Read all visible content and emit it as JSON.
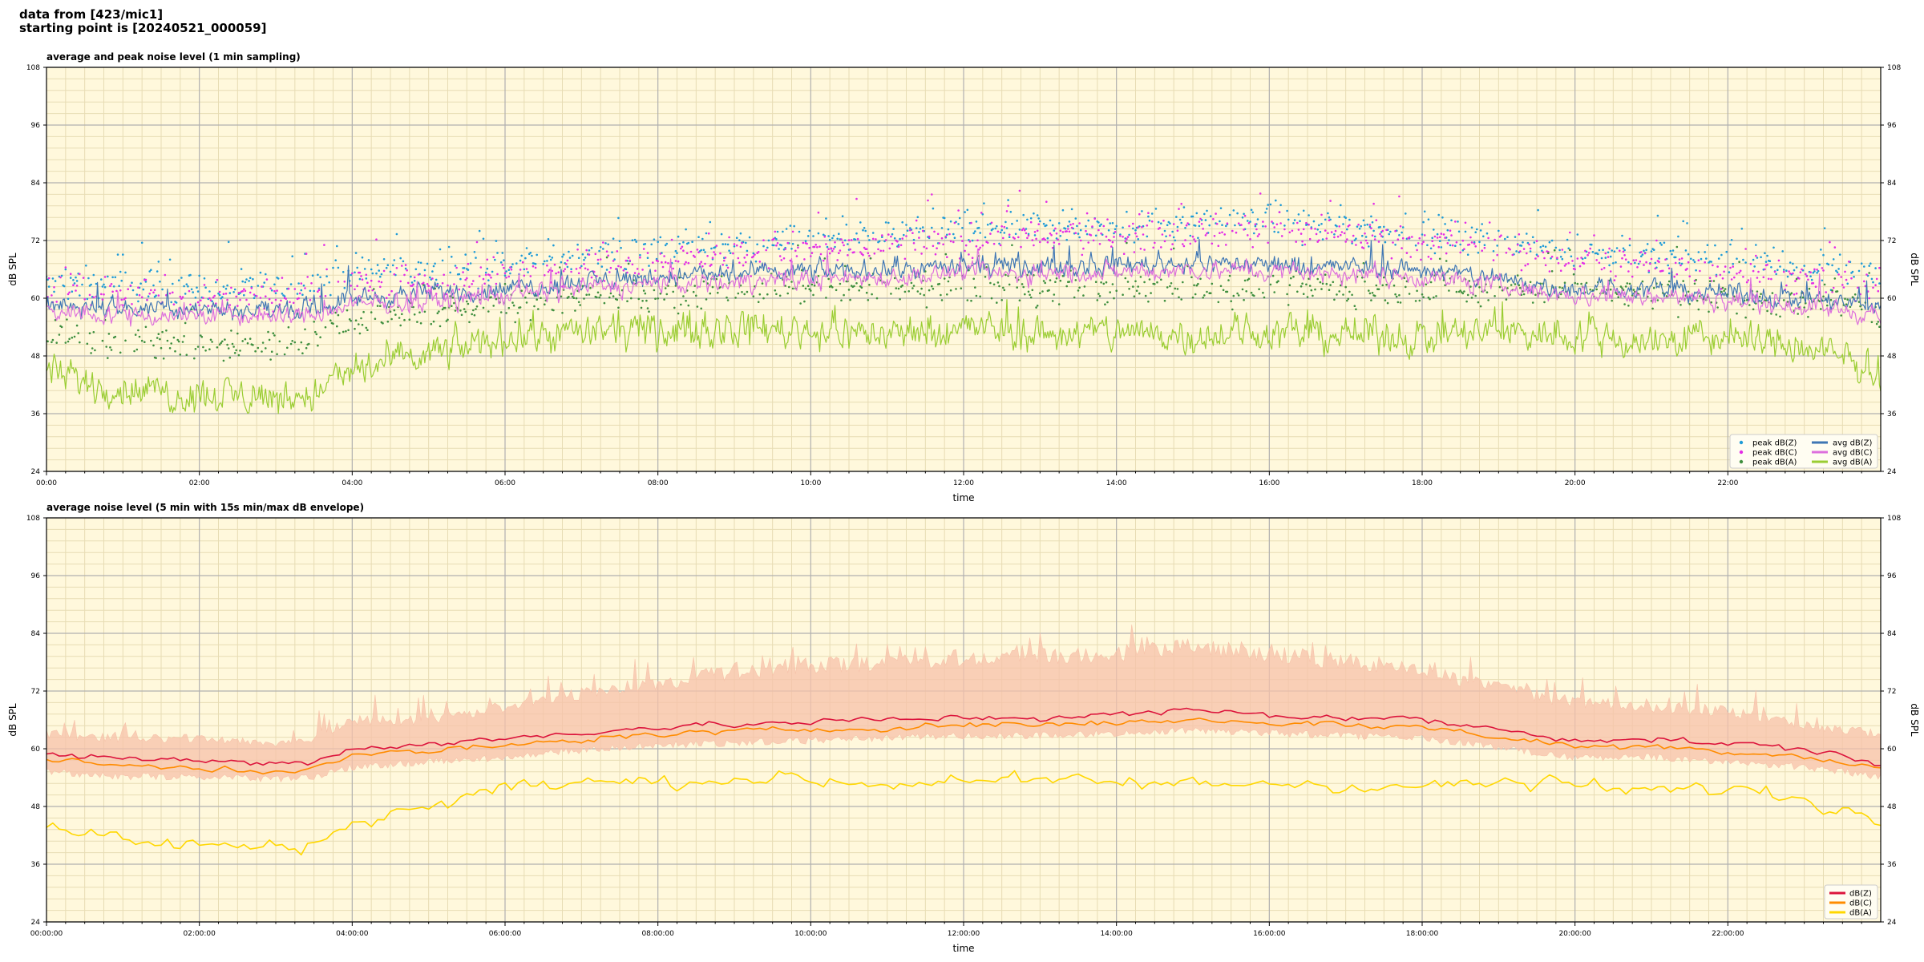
{
  "header": {
    "line1": "data from [423/mic1]",
    "line2": "starting point is [20240521_000059]"
  },
  "colors": {
    "background": "#fff8dc",
    "grid_major": "#b0b0b0",
    "grid_minor": "#e7dcb4",
    "peak_z": "#1f9bd7",
    "peak_c": "#e32de6",
    "peak_a": "#3f8f3f",
    "avg_z": "#3f76b4",
    "avg_c": "#dd6fdd",
    "avg_a": "#9acd32",
    "db_z": "#dc143c",
    "db_c": "#ff8c00",
    "db_a": "#ffd700",
    "envelope": "#f7c2aa"
  },
  "chart_data": [
    {
      "type": "line",
      "title": "average and peak noise level (1 min sampling)",
      "xlabel": "time",
      "ylabel": "dB SPL",
      "xlim": [
        0,
        24
      ],
      "ylim": [
        24,
        108
      ],
      "y_ticks": [
        "24",
        "36",
        "48",
        "60",
        "72",
        "84",
        "96",
        "108"
      ],
      "x_ticks": [
        "00:00",
        "02:00",
        "04:00",
        "06:00",
        "08:00",
        "10:00",
        "12:00",
        "14:00",
        "16:00",
        "18:00",
        "20:00",
        "22:00"
      ],
      "grid": true,
      "legend_position": "bottom-right",
      "x": [
        0,
        1,
        2,
        3,
        3.5,
        4,
        5,
        6,
        7,
        8,
        9,
        10,
        11,
        12,
        13,
        14,
        15,
        16,
        17,
        18,
        19,
        20,
        21,
        22,
        23,
        24
      ],
      "series": [
        {
          "name": "peak dB(Z)",
          "kind": "scatter",
          "values": [
            63,
            63,
            62,
            62,
            63,
            66,
            65,
            67,
            69,
            70,
            71,
            72,
            73,
            74,
            75,
            75,
            76,
            76,
            75,
            74,
            72,
            70,
            69,
            68,
            66,
            65
          ]
        },
        {
          "name": "peak dB(C)",
          "kind": "scatter",
          "values": [
            61,
            61,
            60,
            60,
            61,
            64,
            63,
            65,
            67,
            68,
            69,
            70,
            71,
            72,
            73,
            73,
            74,
            74,
            73,
            72,
            70,
            68,
            67,
            66,
            64,
            63
          ]
        },
        {
          "name": "peak dB(A)",
          "kind": "scatter",
          "values": [
            52,
            51,
            50,
            50,
            52,
            56,
            57,
            59,
            60,
            61,
            62,
            62,
            62,
            62,
            62,
            62,
            62,
            62,
            62,
            62,
            62,
            62,
            61,
            60,
            59,
            58
          ]
        },
        {
          "name": "avg dB(Z)",
          "kind": "line",
          "values": [
            59,
            58,
            58,
            57.5,
            58,
            60,
            61,
            62,
            63.5,
            64.5,
            65,
            65.5,
            66,
            66.5,
            66.5,
            67,
            67.5,
            67,
            66.5,
            66,
            64,
            62,
            62,
            61,
            60,
            58
          ]
        },
        {
          "name": "avg dB(C)",
          "kind": "line",
          "values": [
            57.5,
            56.5,
            56.5,
            56,
            56.5,
            58.5,
            59.5,
            60.5,
            62,
            63,
            63.5,
            64,
            64.5,
            65,
            65,
            65.5,
            66,
            65.5,
            65,
            64.5,
            62.5,
            60.5,
            60.5,
            59.5,
            58.5,
            56.5
          ]
        },
        {
          "name": "avg dB(A)",
          "kind": "line",
          "values": [
            44,
            41,
            40,
            39.5,
            40,
            45,
            48,
            52,
            53,
            53,
            54,
            53.5,
            52.5,
            54,
            52.5,
            53,
            52.5,
            53,
            52.5,
            52,
            53,
            52.5,
            51,
            52,
            49.5,
            45
          ]
        }
      ]
    },
    {
      "type": "line",
      "title": "average noise level (5 min with 15s min/max dB envelope)",
      "xlabel": "time",
      "ylabel": "dB SPL",
      "xlim": [
        0,
        24
      ],
      "ylim": [
        24,
        108
      ],
      "y_ticks": [
        "24",
        "36",
        "48",
        "60",
        "72",
        "84",
        "96",
        "108"
      ],
      "x_ticks": [
        "00:00:00",
        "02:00:00",
        "04:00:00",
        "06:00:00",
        "08:00:00",
        "10:00:00",
        "12:00:00",
        "14:00:00",
        "16:00:00",
        "18:00:00",
        "20:00:00",
        "22:00:00"
      ],
      "grid": true,
      "legend_position": "bottom-right",
      "x": [
        0,
        1,
        2,
        3,
        3.5,
        4,
        5,
        6,
        7,
        8,
        9,
        10,
        11,
        12,
        13,
        14,
        15,
        16,
        17,
        18,
        19,
        20,
        21,
        22,
        23,
        24
      ],
      "envelope": {
        "min": [
          56,
          55,
          55,
          54.5,
          55,
          57,
          58,
          59,
          60.5,
          61.5,
          62,
          62.5,
          63,
          63.5,
          63.5,
          64,
          64.5,
          64,
          63.5,
          63,
          61,
          59,
          59,
          58,
          57,
          55
        ],
        "max": [
          64,
          63,
          63,
          62,
          63,
          67,
          67,
          70,
          73,
          75,
          78,
          79,
          80,
          81,
          81,
          82,
          83,
          82,
          80,
          78,
          74,
          71,
          70,
          69,
          66,
          64
        ]
      },
      "series": [
        {
          "name": "dB(Z)",
          "values": [
            59,
            58,
            57.5,
            57,
            57.5,
            60,
            61,
            62,
            63.5,
            64.5,
            65,
            65.5,
            66,
            66.5,
            66.5,
            67,
            68,
            67,
            66.5,
            66,
            64,
            62,
            62,
            61,
            60,
            57
          ]
        },
        {
          "name": "dB(C)",
          "values": [
            57.5,
            56.5,
            56,
            55.5,
            56,
            58.5,
            59.5,
            60.5,
            62,
            63,
            63.5,
            64,
            64.5,
            65,
            65,
            65.5,
            66,
            65.5,
            65,
            64.5,
            62.5,
            60.5,
            60.5,
            59.5,
            58.5,
            56
          ]
        },
        {
          "name": "dB(A)",
          "values": [
            44,
            41,
            40,
            39.5,
            40,
            45,
            48,
            52,
            53,
            53,
            54,
            53.5,
            52.5,
            54,
            53,
            53,
            52.5,
            53,
            52.5,
            52,
            53,
            52.5,
            51,
            52,
            49.5,
            45
          ]
        }
      ]
    }
  ]
}
